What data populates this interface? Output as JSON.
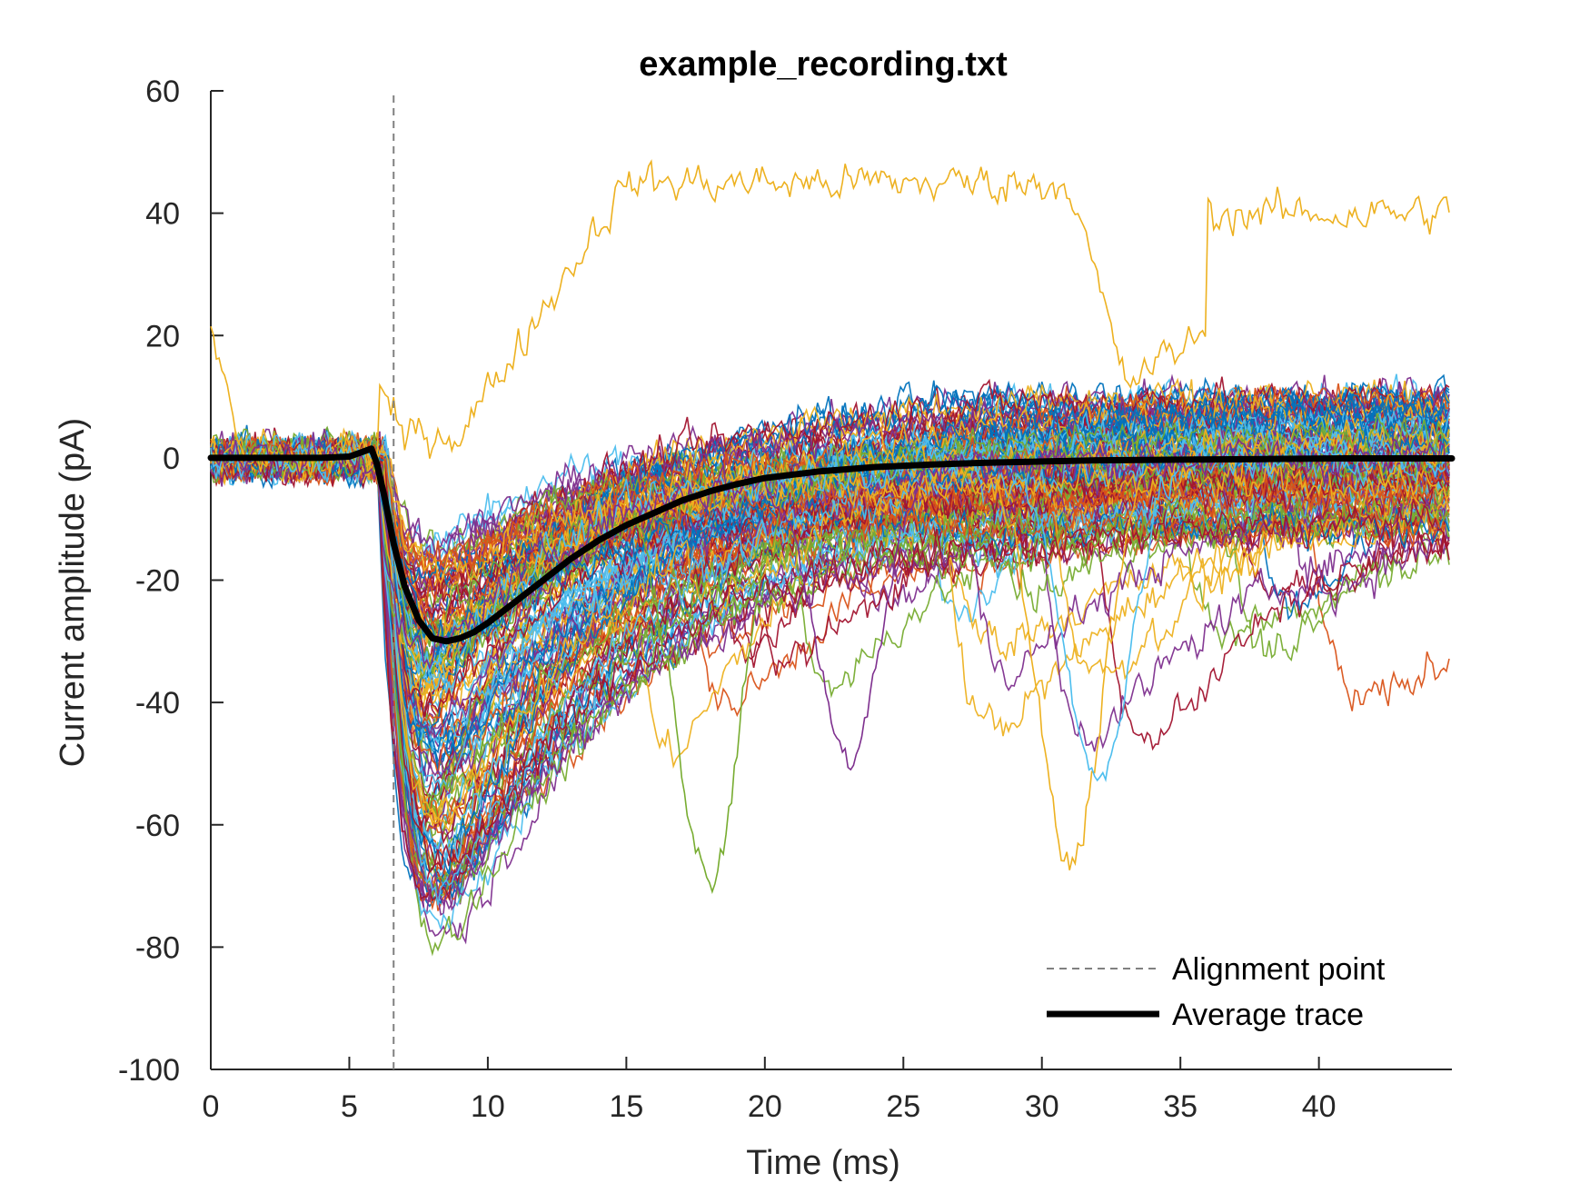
{
  "chart_data": {
    "type": "line",
    "title": "example_recording.txt",
    "xlabel": "Time (ms)",
    "ylabel": "Current amplitude (pA)",
    "xlim": [
      0,
      44.8
    ],
    "ylim": [
      -100,
      60
    ],
    "xticks": [
      0,
      5,
      10,
      15,
      20,
      25,
      30,
      35,
      40
    ],
    "yticks": [
      -100,
      -80,
      -60,
      -40,
      -20,
      0,
      20,
      40,
      60
    ],
    "grid": false,
    "legend_position": "bottom-right",
    "alignment_point_ms": 6.6,
    "trace_colors": [
      "#0072BD",
      "#D95319",
      "#EDB120",
      "#7E2F8E",
      "#77AC30",
      "#4DBEEE",
      "#A2142F"
    ],
    "individual_traces": {
      "description_count": 150,
      "baseline_pA": 0,
      "baseline_noise_pA": 5,
      "onset_ms": 6.0,
      "typical_peak_ms": 8.5,
      "peak_range_pA": [
        -90,
        -15
      ],
      "outlier_traces": [
        {
          "color": "#EDB120",
          "plateau_pA": 45,
          "from_ms": 9,
          "to_ms": 31,
          "end_pA": 40
        },
        {
          "color": "#77AC30",
          "dip_pA": -77,
          "at_ms": 18
        },
        {
          "color": "#EDB120",
          "dip_pA": -78,
          "at_ms": 31
        },
        {
          "color": "#4DBEEE",
          "dip_pA": -62,
          "at_ms": 32
        },
        {
          "color": "#7E2F8E",
          "dip_pA": -55,
          "at_ms": 23
        }
      ]
    },
    "series": [
      {
        "name": "Alignment point",
        "style": "dashed",
        "color": "#808080",
        "x": [
          6.6,
          6.6
        ],
        "y": [
          -100,
          60
        ]
      },
      {
        "name": "Average trace",
        "style": "solid-thick",
        "color": "#000000",
        "x": [
          0,
          1,
          2,
          3,
          4,
          5,
          5.8,
          6.0,
          6.3,
          6.6,
          7.0,
          7.5,
          8.0,
          8.5,
          9.0,
          9.5,
          10,
          11,
          12,
          13,
          14,
          15,
          16,
          17,
          18,
          19,
          20,
          22,
          24,
          26,
          28,
          30,
          32,
          35,
          38,
          41,
          44.8
        ],
        "y": [
          0,
          0,
          0,
          0,
          0,
          0.2,
          1.5,
          -1,
          -7,
          -14,
          -21,
          -26.5,
          -29.5,
          -30,
          -29.5,
          -28.5,
          -27,
          -23.5,
          -20,
          -16.5,
          -13.5,
          -11,
          -9,
          -7,
          -5.5,
          -4.3,
          -3.3,
          -2.2,
          -1.5,
          -1.1,
          -0.8,
          -0.6,
          -0.4,
          -0.3,
          -0.2,
          -0.1,
          -0.1
        ]
      }
    ]
  }
}
